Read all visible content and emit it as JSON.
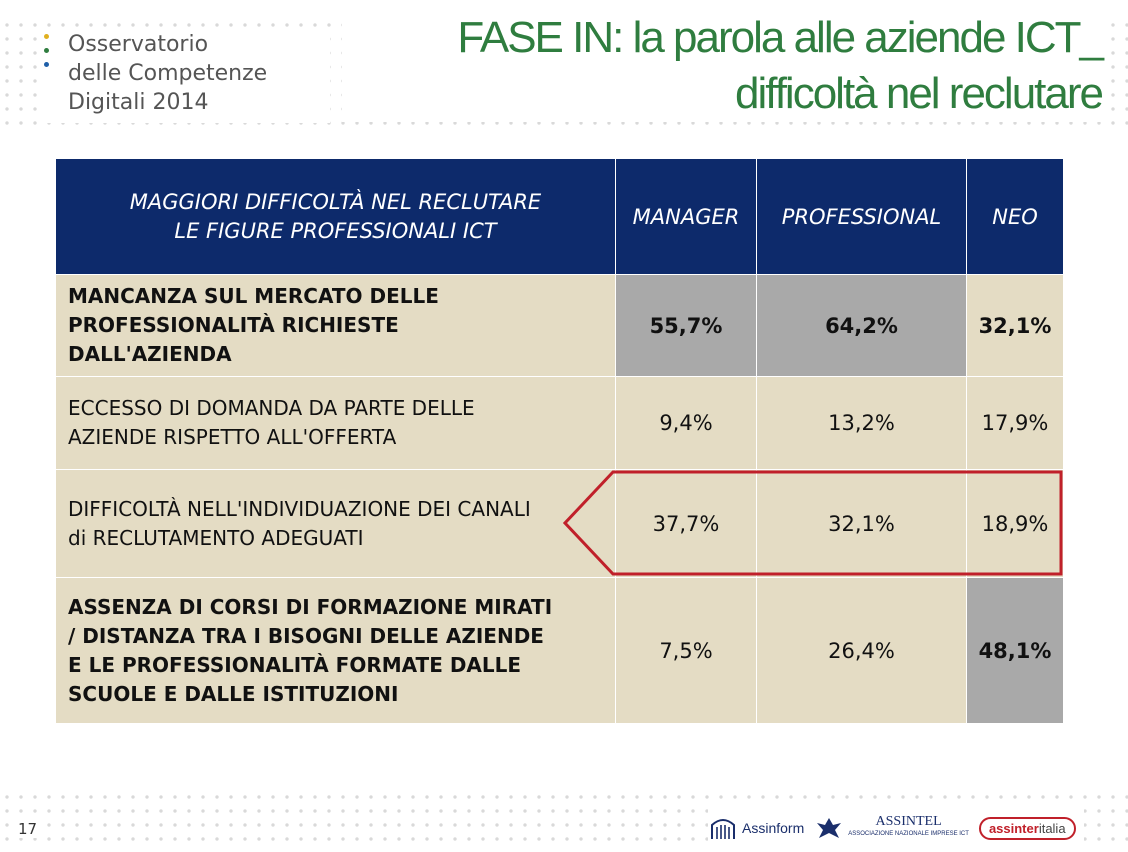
{
  "logo": {
    "line1": "Osservatorio",
    "line2": "delle Competenze",
    "line3": "Digitali 2014",
    "bullet_colors": [
      "#e0b020",
      "#2f7d3f",
      "#1f5fa8"
    ]
  },
  "title": {
    "line1": "FASE IN: la parola alle aziende ICT_",
    "line2": "difficoltà nel reclutare",
    "color": "#2f7d3f"
  },
  "table": {
    "header": {
      "lead_line1": "MAGGIORI DIFFICOLTÀ NEL RECLUTARE",
      "lead_line2": "LE FIGURE PROFESSIONALI ICT",
      "col_manager": "MANAGER",
      "col_professional": "PROFESSIONAL",
      "col_neo": "NEO"
    },
    "rows": [
      {
        "label_lines": [
          "MANCANZA SUL MERCATO DELLE",
          "PROFESSIONALITÀ RICHIESTE",
          "DALL'AZIENDA"
        ],
        "manager": "55,7%",
        "professional": "64,2%",
        "neo": "32,1%"
      },
      {
        "label_lines": [
          "ECCESSO DI DOMANDA DA PARTE DELLE",
          "AZIENDE RISPETTO ALL'OFFERTA"
        ],
        "manager": "9,4%",
        "professional": "13,2%",
        "neo": "17,9%"
      },
      {
        "label_lines": [
          "DIFFICOLTÀ NELL'INDIVIDUAZIONE DEI CANALI",
          "di  RECLUTAMENTO ADEGUATI"
        ],
        "manager": "37,7%",
        "professional": "32,1%",
        "neo": "18,9%"
      },
      {
        "label_lines": [
          "ASSENZA DI CORSI DI FORMAZIONE MIRATI",
          "/ DISTANZA TRA I BISOGNI DELLE AZIENDE",
          "E LE PROFESSIONALITÀ FORMATE DALLE",
          "SCUOLE E DALLE ISTITUZIONI"
        ],
        "manager": "7,5%",
        "professional": "26,4%",
        "neo": "48,1%"
      }
    ],
    "header_color": "#0d2a6b",
    "row_color": "#e4dcc4",
    "highlight_cell_color": "#a9a9a9",
    "callout_color": "#c0202a"
  },
  "footer": {
    "page_number": "17",
    "logo_assinform": "Assinform",
    "logo_assintel": "ASSINTEL",
    "logo_assintel_sub": "ASSOCIAZIONE NAZIONALE IMPRESE ICT",
    "logo_assinter_a": "assinter",
    "logo_assinter_b": "italia"
  }
}
